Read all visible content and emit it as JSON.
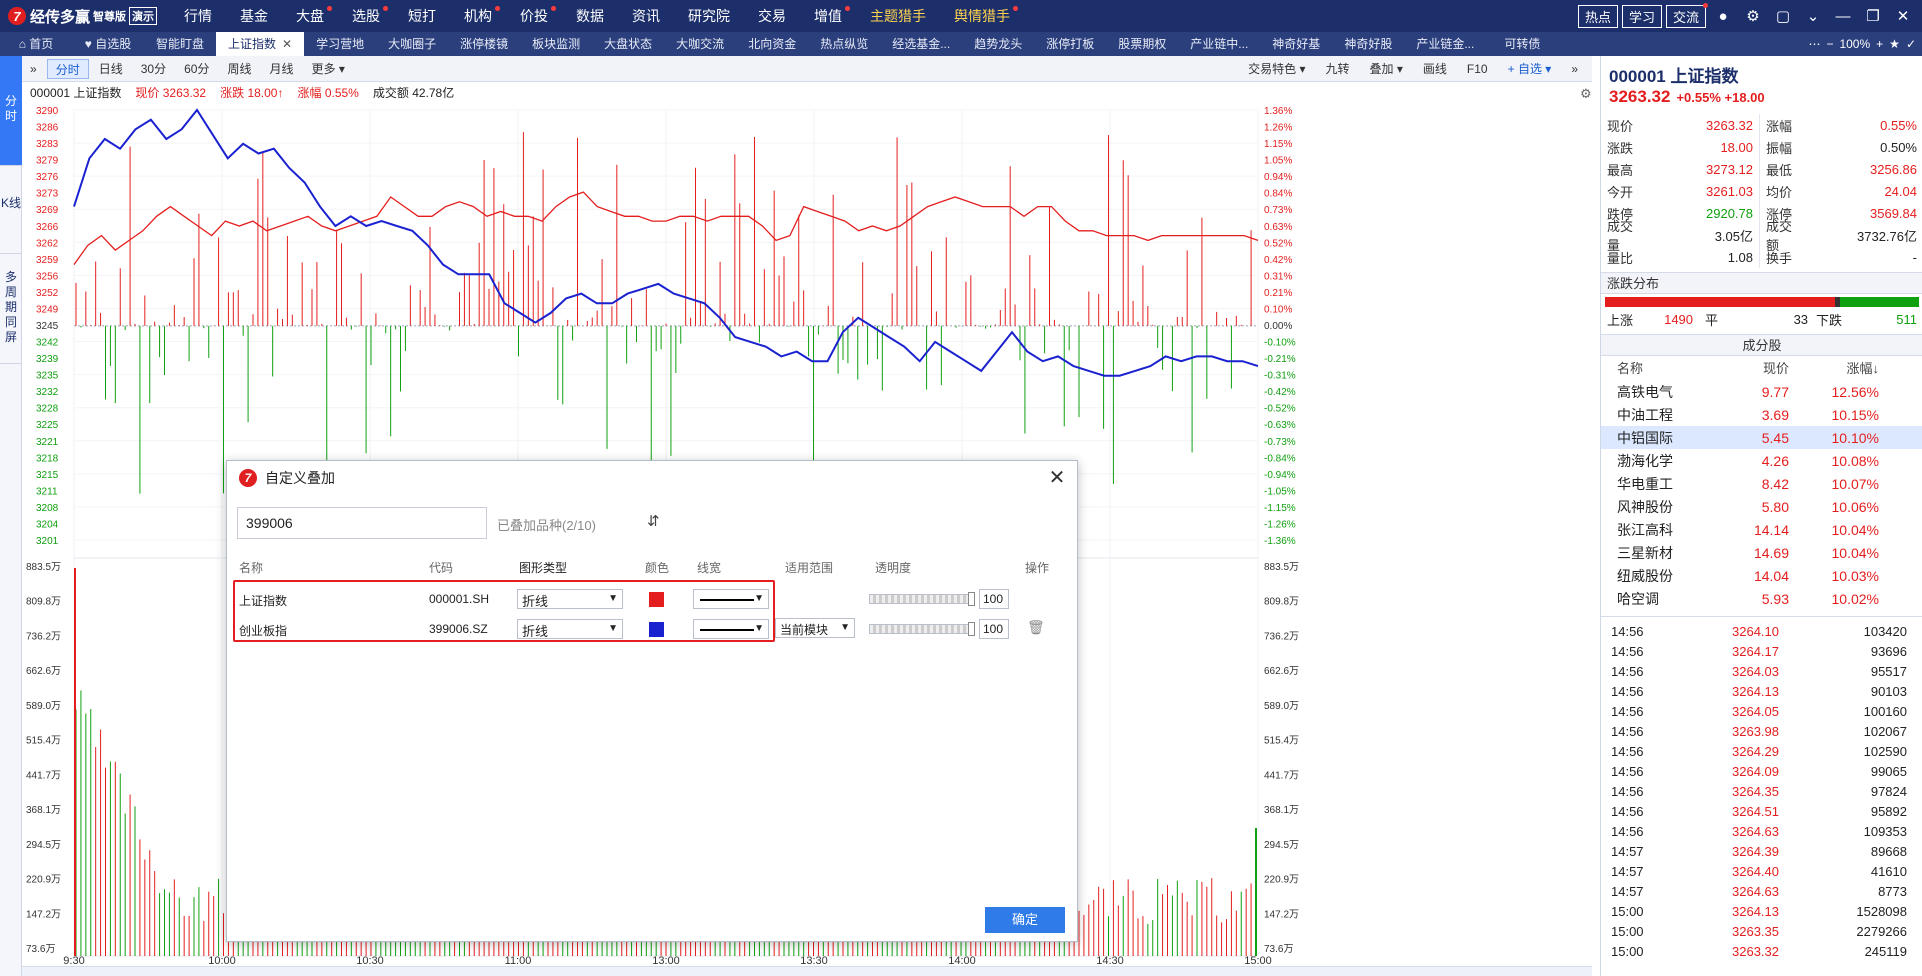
{
  "app": {
    "name": "经传多赢",
    "edition": "智尊版",
    "demo": "演示",
    "menu": [
      "行情",
      "基金",
      "大盘",
      "选股",
      "短打",
      "机构",
      "价投",
      "数据",
      "资讯",
      "研究院",
      "交易",
      "增值",
      "主题猎手",
      "舆情猎手"
    ],
    "right_buttons": [
      "热点",
      "学习",
      "交流"
    ]
  },
  "tabs": [
    "首页",
    "自选股",
    "智能盯盘",
    "上证指数",
    "学习营地",
    "大咖圈子",
    "涨停楼镜",
    "板块监测",
    "大盘状态",
    "大咖交流",
    "北向资金",
    "热点纵览",
    "经选基金...",
    "趋势龙头",
    "涨停打板",
    "股票期权",
    "产业链中...",
    "神奇好基",
    "神奇好股",
    "产业链金...",
    "可转债"
  ],
  "tabright": {
    "zoom": "100%"
  },
  "vstrip": [
    "分时",
    "K线",
    "多周期同屏"
  ],
  "chart_toolbar": {
    "left": [
      "分时",
      "日线",
      "30分",
      "60分",
      "周线",
      "月线",
      "更多"
    ],
    "right": [
      "交易特色",
      "九转",
      "叠加",
      "画线",
      "F10",
      "自选"
    ]
  },
  "info": {
    "code_name": "000001 上证指数",
    "price": "现价 3263.32",
    "change": "涨跌 18.00↑",
    "pct": "涨幅 0.55%",
    "volume": "成交额 42.78亿"
  },
  "chart_data": {
    "type": "line",
    "x_ticks": [
      "9:30",
      "10:00",
      "10:30",
      "11:00",
      "13:00",
      "13:30",
      "14:00",
      "14:30",
      "15:00"
    ],
    "price_axis": [
      "3290",
      "3286",
      "3283",
      "3279",
      "3276",
      "3273",
      "3269",
      "3266",
      "3262",
      "3259",
      "3256",
      "3252",
      "3249",
      "3245",
      "3242",
      "3239",
      "3235",
      "3232",
      "3228",
      "3225",
      "3221",
      "3218",
      "3215",
      "3211",
      "3208",
      "3204",
      "3201"
    ],
    "pct_axis": [
      "1.36%",
      "1.26%",
      "1.15%",
      "1.05%",
      "0.94%",
      "0.84%",
      "0.73%",
      "0.63%",
      "0.52%",
      "0.42%",
      "0.31%",
      "0.21%",
      "0.10%",
      "0.00%",
      "-0.10%",
      "-0.21%",
      "-0.31%",
      "-0.42%",
      "-0.52%",
      "-0.63%",
      "-0.73%",
      "-0.84%",
      "-0.94%",
      "-1.05%",
      "-1.15%",
      "-1.26%",
      "-1.36%"
    ],
    "vol_axis": [
      "883.5万",
      "809.8万",
      "736.2万",
      "662.6万",
      "589.0万",
      "515.4万",
      "441.7万",
      "368.1万",
      "294.5万",
      "220.9万",
      "147.2万",
      "73.6万"
    ],
    "ylim": [
      3201,
      3290
    ],
    "baseline": 3245.32,
    "series": [
      {
        "name": "上证指数",
        "color": "#e41e1e",
        "values": [
          3258,
          3262,
          3264,
          3261,
          3263,
          3265,
          3268,
          3270,
          3268,
          3266,
          3264,
          3267,
          3266,
          3267,
          3265,
          3266,
          3267,
          3268,
          3266,
          3265,
          3266,
          3267,
          3268,
          3272,
          3270,
          3268,
          3268,
          3270,
          3271,
          3270,
          3268,
          3269,
          3268,
          3268,
          3267,
          3270,
          3272,
          3273,
          3270,
          3269,
          3268,
          3268,
          3267,
          3267,
          3268,
          3268,
          3267,
          3268,
          3268,
          3268,
          3266,
          3263,
          3264,
          3270,
          3269,
          3268,
          3267,
          3265,
          3266,
          3265,
          3266,
          3268,
          3270,
          3271,
          3272,
          3271,
          3270,
          3270,
          3270,
          3268,
          3270,
          3270,
          3267,
          3265,
          3265,
          3264,
          3264,
          3264,
          3263,
          3264,
          3264,
          3264,
          3264,
          3264,
          3264,
          3264,
          3263
        ]
      },
      {
        "name": "创业板指",
        "color": "#1a22d0",
        "values": [
          3270,
          3280,
          3284,
          3282,
          3286,
          3288,
          3284,
          3286,
          3290,
          3285,
          3280,
          3283,
          3281,
          3282,
          3278,
          3275,
          3270,
          3266,
          3268,
          3266,
          3267,
          3266,
          3265,
          3262,
          3258,
          3256,
          3256,
          3256,
          3250,
          3248,
          3246,
          3248,
          3251,
          3252,
          3250,
          3250,
          3252,
          3253,
          3254,
          3252,
          3251,
          3250,
          3247,
          3243,
          3242,
          3241,
          3239,
          3240,
          3238,
          3238,
          3244,
          3247,
          3245,
          3243,
          3241,
          3238,
          3242,
          3240,
          3238,
          3236,
          3240,
          3244,
          3240,
          3238,
          3239,
          3237,
          3236,
          3235,
          3235,
          3236,
          3237,
          3239,
          3238,
          3239,
          3239,
          3238,
          3238,
          3237
        ]
      }
    ]
  },
  "quote": {
    "title": "000001 上证指数",
    "price": "3263.32",
    "change": "+0.55% +18.00",
    "rows": [
      [
        "现价",
        "3263.32",
        "涨幅",
        "0.55%"
      ],
      [
        "涨跌",
        "18.00",
        "振幅",
        "0.50%"
      ],
      [
        "最高",
        "3273.12",
        "最低",
        "3256.86"
      ],
      [
        "今开",
        "3261.03",
        "均价",
        "24.04"
      ],
      [
        "跌停",
        "2920.78",
        "涨停",
        "3569.84"
      ],
      [
        "成交量",
        "3.05亿",
        "成交额",
        "3732.76亿"
      ],
      [
        "量比",
        "1.08",
        "换手",
        "-"
      ]
    ],
    "dist_title": "涨跌分布",
    "dist": {
      "up_label": "上涨",
      "up": "1490",
      "flat_label": "平",
      "flat": "33",
      "down_label": "下跌",
      "down": "511"
    },
    "comp_title": "成分股",
    "comp_head": [
      "名称",
      "现价",
      "涨幅↓"
    ],
    "components": [
      [
        "高铁电气",
        "9.77",
        "12.56%"
      ],
      [
        "中油工程",
        "3.69",
        "10.15%"
      ],
      [
        "中铝国际",
        "5.45",
        "10.10%"
      ],
      [
        "渤海化学",
        "4.26",
        "10.08%"
      ],
      [
        "华电重工",
        "8.42",
        "10.07%"
      ],
      [
        "风神股份",
        "5.80",
        "10.06%"
      ],
      [
        "张江高科",
        "14.14",
        "10.04%"
      ],
      [
        "三星新材",
        "14.69",
        "10.04%"
      ],
      [
        "纽威股份",
        "14.04",
        "10.03%"
      ],
      [
        "哈空调",
        "5.93",
        "10.02%"
      ]
    ],
    "ticks": [
      [
        "14:56",
        "3264.10",
        "103420"
      ],
      [
        "14:56",
        "3264.17",
        "93696"
      ],
      [
        "14:56",
        "3264.03",
        "95517"
      ],
      [
        "14:56",
        "3264.13",
        "90103"
      ],
      [
        "14:56",
        "3264.05",
        "100160"
      ],
      [
        "14:56",
        "3263.98",
        "102067"
      ],
      [
        "14:56",
        "3264.29",
        "102590"
      ],
      [
        "14:56",
        "3264.09",
        "99065"
      ],
      [
        "14:56",
        "3264.35",
        "97824"
      ],
      [
        "14:56",
        "3264.51",
        "95892"
      ],
      [
        "14:56",
        "3264.63",
        "109353"
      ],
      [
        "14:57",
        "3264.39",
        "89668"
      ],
      [
        "14:57",
        "3264.40",
        "41610"
      ],
      [
        "14:57",
        "3264.63",
        "8773"
      ],
      [
        "15:00",
        "3264.13",
        "1528098"
      ],
      [
        "15:00",
        "3263.35",
        "2279266"
      ],
      [
        "15:00",
        "3263.32",
        "245119"
      ]
    ]
  },
  "dialog": {
    "title": "自定义叠加",
    "input_value": "399006",
    "count": "已叠加品种(2/10)",
    "headers": [
      "名称",
      "代码",
      "图形类型",
      "颜色",
      "线宽",
      "适用范围",
      "透明度",
      "操作"
    ],
    "rows": [
      {
        "name": "上证指数",
        "code": "000001.SH",
        "type": "折线",
        "color": "#e41e1e",
        "scope": "",
        "opacity": "100"
      },
      {
        "name": "创业板指",
        "code": "399006.SZ",
        "type": "折线",
        "color": "#1a22d0",
        "scope": "当前模块",
        "opacity": "100"
      }
    ],
    "ok": "确定"
  }
}
